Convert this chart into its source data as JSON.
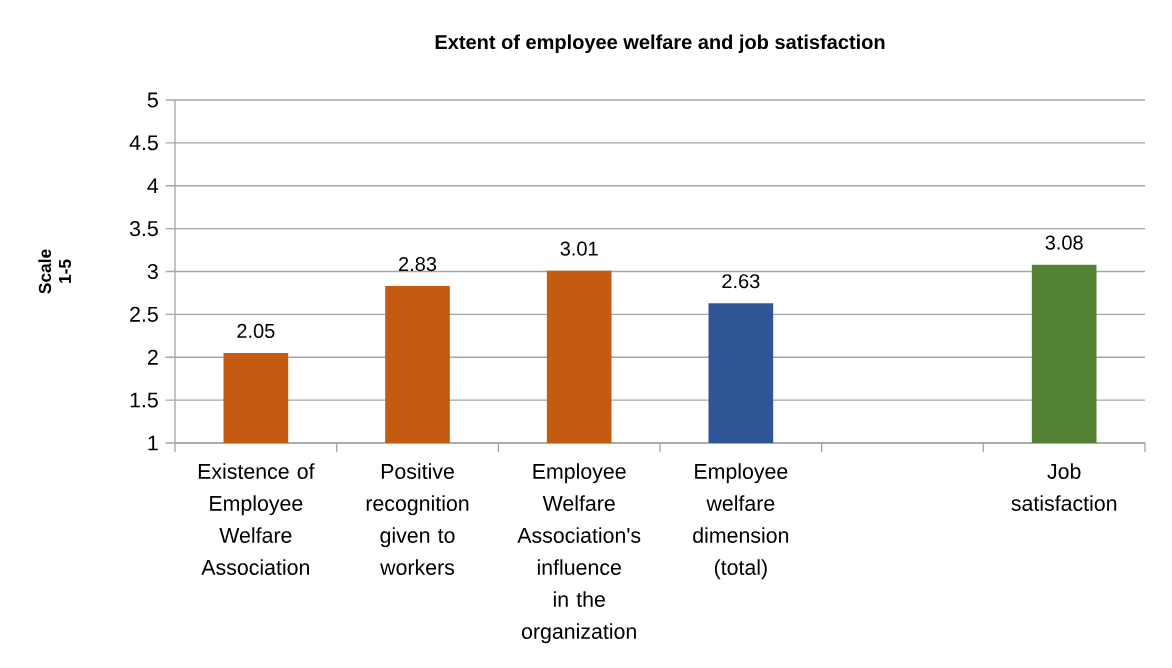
{
  "chart_data": {
    "type": "bar",
    "title": "Extent of employee welfare and job satisfaction",
    "ylabel": "Scale 1-5",
    "categories": [
      "Existence of Employee Welfare Association",
      "Positive recognition given to workers",
      "Employee Welfare Association's influence in the organization",
      "Employee welfare dimension (total)",
      null,
      "Job satisfaction"
    ],
    "values": [
      2.05,
      2.83,
      3.01,
      2.63,
      null,
      3.08
    ],
    "colors": [
      "#c55a11",
      "#c55a11",
      "#c55a11",
      "#2f5597",
      null,
      "#548235"
    ],
    "ylim": [
      1,
      5
    ],
    "yticks": [
      1,
      1.5,
      2,
      2.5,
      3,
      3.5,
      4,
      4.5,
      5
    ],
    "grid": "y",
    "data_labels": true
  }
}
